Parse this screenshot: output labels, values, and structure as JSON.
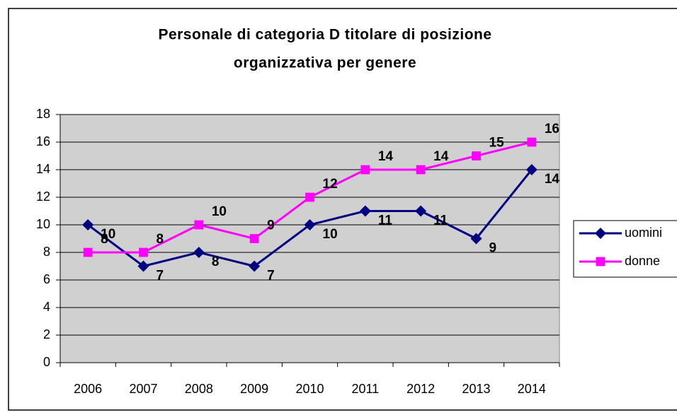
{
  "chart_data": {
    "type": "line",
    "title": [
      "Personale di categoria D titolare di posizione",
      "organizzativa per genere"
    ],
    "categories": [
      "2006",
      "2007",
      "2008",
      "2009",
      "2010",
      "2011",
      "2012",
      "2013",
      "2014"
    ],
    "series": [
      {
        "name": "uomini",
        "color": "#000080",
        "marker": "diamond",
        "values": [
          10,
          7,
          8,
          7,
          10,
          11,
          11,
          9,
          14
        ]
      },
      {
        "name": "donne",
        "color": "#ff00ff",
        "marker": "square",
        "values": [
          8,
          8,
          10,
          9,
          12,
          14,
          14,
          15,
          16
        ]
      }
    ],
    "ylim": [
      0,
      18
    ],
    "yticks": [
      0,
      2,
      4,
      6,
      8,
      10,
      12,
      14,
      16,
      18
    ],
    "grid": true,
    "legend": "right"
  }
}
